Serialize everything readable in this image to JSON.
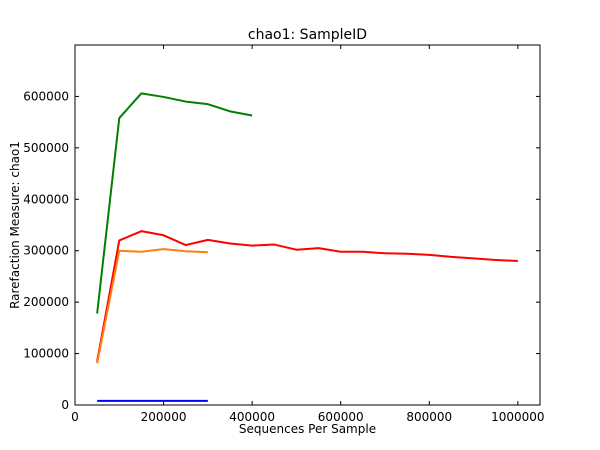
{
  "chart_data": {
    "type": "line",
    "title": "chao1: SampleID",
    "xlabel": "Sequences Per Sample",
    "ylabel": "Rarefaction Measure: chao1",
    "xlim": [
      0,
      1050000
    ],
    "ylim": [
      0,
      700000
    ],
    "x_ticks": [
      0,
      200000,
      400000,
      600000,
      800000,
      1000000
    ],
    "y_ticks": [
      0,
      100000,
      200000,
      300000,
      400000,
      500000,
      600000
    ],
    "x_tick_labels": [
      "0",
      "200000",
      "400000",
      "600000",
      "800000",
      "1000000"
    ],
    "y_tick_labels": [
      "0",
      "100000",
      "200000",
      "300000",
      "400000",
      "500000",
      "600000"
    ],
    "grid": false,
    "legend": false,
    "series": [
      {
        "color": "#0000ff",
        "x": [
          50000,
          100000,
          150000,
          200000,
          250000,
          300000
        ],
        "y": [
          8000,
          8000,
          8000,
          8000,
          8000,
          8000
        ]
      },
      {
        "color": "#008000",
        "x": [
          50000,
          100000,
          150000,
          200000,
          250000,
          300000,
          350000,
          400000
        ],
        "y": [
          178000,
          558000,
          606000,
          599000,
          590000,
          585000,
          571000,
          563000
        ]
      },
      {
        "color": "#ff0000",
        "x": [
          50000,
          100000,
          150000,
          200000,
          250000,
          300000,
          350000,
          400000,
          450000,
          500000,
          550000,
          600000,
          650000,
          700000,
          750000,
          800000,
          850000,
          900000,
          950000,
          1000000
        ],
        "y": [
          85000,
          320000,
          338000,
          330000,
          311000,
          321000,
          314000,
          310000,
          312000,
          302000,
          305000,
          298000,
          298000,
          295000,
          294000,
          292000,
          288000,
          285000,
          282000,
          280000
        ]
      },
      {
        "color": "#ff7f0e",
        "x": [
          50000,
          100000,
          150000,
          200000,
          250000,
          300000
        ],
        "y": [
          81000,
          300000,
          298000,
          303000,
          299000,
          297000
        ]
      }
    ]
  }
}
